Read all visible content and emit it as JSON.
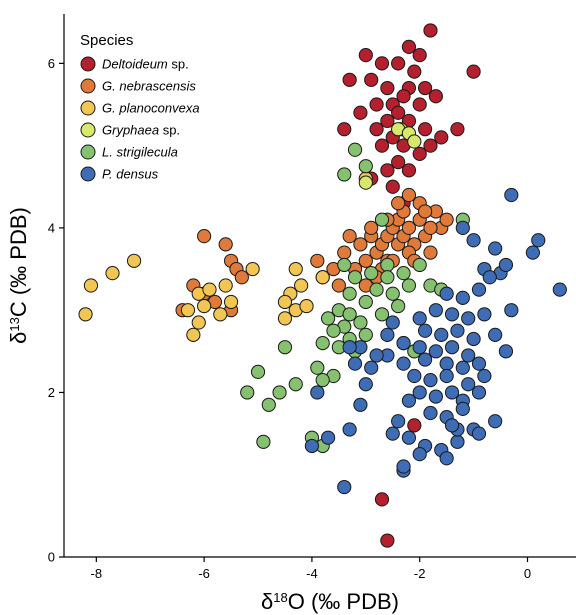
{
  "chart_data": {
    "type": "scatter",
    "xlabel_symbol": "δ",
    "xlabel_sup": "18",
    "xlabel_rest": "O (‰ PDB)",
    "ylabel_symbol": "δ",
    "ylabel_sup": "13",
    "ylabel_rest": "C (‰ PDB)",
    "xlim": [
      -8.6,
      0.9
    ],
    "ylim": [
      0,
      6.6
    ],
    "xticks": [
      -8,
      -6,
      -4,
      -2,
      0
    ],
    "yticks": [
      0,
      2,
      4,
      6
    ],
    "legend_title": "Species",
    "legend_position": "top-left",
    "series": [
      {
        "name": "Deltoideum sp.",
        "name_italic": "Deltoideum",
        "name_rest": " sp.",
        "color": "#b5202e",
        "points": [
          [
            -1.8,
            6.4
          ],
          [
            -2.2,
            6.2
          ],
          [
            -2.0,
            6.1
          ],
          [
            -3.0,
            6.1
          ],
          [
            -2.7,
            6.0
          ],
          [
            -2.4,
            6.0
          ],
          [
            -2.1,
            5.9
          ],
          [
            -1.0,
            5.9
          ],
          [
            -3.3,
            5.8
          ],
          [
            -2.9,
            5.8
          ],
          [
            -2.2,
            5.7
          ],
          [
            -1.9,
            5.7
          ],
          [
            -2.6,
            5.7
          ],
          [
            -2.3,
            5.6
          ],
          [
            -1.7,
            5.6
          ],
          [
            -2.8,
            5.5
          ],
          [
            -2.5,
            5.5
          ],
          [
            -2.0,
            5.5
          ],
          [
            -3.1,
            5.4
          ],
          [
            -2.4,
            5.4
          ],
          [
            -2.6,
            5.3
          ],
          [
            -2.2,
            5.3
          ],
          [
            -1.9,
            5.2
          ],
          [
            -3.4,
            5.2
          ],
          [
            -2.8,
            5.2
          ],
          [
            -1.3,
            5.2
          ],
          [
            -2.5,
            5.1
          ],
          [
            -2.3,
            5.0
          ],
          [
            -1.6,
            5.1
          ],
          [
            -2.7,
            5.0
          ],
          [
            -1.8,
            5.0
          ],
          [
            -2.0,
            4.9
          ],
          [
            -2.4,
            4.8
          ],
          [
            -2.6,
            4.7
          ],
          [
            -2.2,
            4.7
          ],
          [
            -2.9,
            4.6
          ],
          [
            -2.5,
            4.5
          ],
          [
            -2.3,
            4.3
          ],
          [
            -2.7,
            0.7
          ],
          [
            -2.6,
            0.2
          ],
          [
            -2.1,
            1.6
          ]
        ]
      },
      {
        "name": "G. nebrascensis",
        "name_italic": "G. nebrascensis",
        "name_rest": "",
        "color": "#e07a3a",
        "points": [
          [
            -6.0,
            3.9
          ],
          [
            -5.6,
            3.8
          ],
          [
            -5.5,
            3.6
          ],
          [
            -5.4,
            3.5
          ],
          [
            -5.3,
            3.4
          ],
          [
            -6.2,
            3.3
          ],
          [
            -6.0,
            3.2
          ],
          [
            -5.8,
            3.1
          ],
          [
            -6.4,
            3.0
          ],
          [
            -5.5,
            3.0
          ],
          [
            -3.9,
            3.6
          ],
          [
            -3.6,
            3.5
          ],
          [
            -3.8,
            3.4
          ],
          [
            -3.4,
            3.7
          ],
          [
            -3.3,
            3.9
          ],
          [
            -3.1,
            3.8
          ],
          [
            -3.0,
            3.6
          ],
          [
            -2.9,
            3.9
          ],
          [
            -2.8,
            3.7
          ],
          [
            -2.7,
            3.8
          ],
          [
            -2.6,
            3.9
          ],
          [
            -2.5,
            4.0
          ],
          [
            -2.4,
            3.8
          ],
          [
            -2.3,
            3.9
          ],
          [
            -2.2,
            4.0
          ],
          [
            -2.1,
            3.8
          ],
          [
            -2.0,
            4.1
          ],
          [
            -1.9,
            3.9
          ],
          [
            -1.8,
            3.7
          ],
          [
            -1.7,
            4.2
          ],
          [
            -1.6,
            4.0
          ],
          [
            -1.5,
            4.1
          ],
          [
            -2.2,
            3.7
          ],
          [
            -2.6,
            3.6
          ],
          [
            -2.4,
            4.1
          ],
          [
            -2.3,
            4.2
          ],
          [
            -2.0,
            4.3
          ],
          [
            -1.9,
            4.2
          ],
          [
            -2.7,
            3.5
          ],
          [
            -2.5,
            3.6
          ],
          [
            -2.1,
            3.6
          ],
          [
            -3.2,
            3.5
          ],
          [
            -2.8,
            3.4
          ],
          [
            -3.5,
            3.3
          ],
          [
            -2.9,
            4.0
          ],
          [
            -2.4,
            4.3
          ],
          [
            -2.2,
            4.4
          ],
          [
            -1.8,
            4.0
          ],
          [
            -2.6,
            4.1
          ],
          [
            -3.0,
            3.3
          ]
        ]
      },
      {
        "name": "G. planoconvexa",
        "name_italic": "G. planoconvexa",
        "name_rest": "",
        "color": "#f2c653",
        "points": [
          [
            -8.1,
            3.3
          ],
          [
            -8.2,
            2.95
          ],
          [
            -7.7,
            3.45
          ],
          [
            -7.3,
            3.6
          ],
          [
            -6.1,
            3.2
          ],
          [
            -5.9,
            3.25
          ],
          [
            -5.6,
            3.3
          ],
          [
            -5.5,
            3.1
          ],
          [
            -6.3,
            3.0
          ],
          [
            -6.0,
            3.05
          ],
          [
            -5.7,
            2.95
          ],
          [
            -6.1,
            2.85
          ],
          [
            -6.2,
            2.7
          ],
          [
            -5.1,
            3.5
          ],
          [
            -4.3,
            3.5
          ],
          [
            -4.2,
            3.3
          ],
          [
            -4.4,
            3.2
          ],
          [
            -4.5,
            3.1
          ],
          [
            -4.3,
            3.0
          ],
          [
            -4.1,
            3.05
          ],
          [
            -4.5,
            2.9
          ],
          [
            -3.8,
            3.4
          ],
          [
            -2.35,
            5.2
          ],
          [
            -3.0,
            4.6
          ]
        ]
      },
      {
        "name": "Gryphaea sp.",
        "name_italic": "Gryphaea",
        "name_rest": " sp.",
        "color": "#d7e86a",
        "points": [
          [
            -2.4,
            5.2
          ],
          [
            -2.2,
            5.15
          ],
          [
            -3.0,
            4.55
          ],
          [
            -2.1,
            5.05
          ]
        ]
      },
      {
        "name": "L. strigilecula",
        "name_italic": "L. strigilecula",
        "name_rest": "",
        "color": "#86c170",
        "points": [
          [
            -3.2,
            4.95
          ],
          [
            -3.4,
            4.65
          ],
          [
            -3.0,
            4.75
          ],
          [
            -2.7,
            4.1
          ],
          [
            -1.2,
            4.1
          ],
          [
            -3.4,
            3.55
          ],
          [
            -3.2,
            3.4
          ],
          [
            -2.9,
            3.45
          ],
          [
            -2.6,
            3.55
          ],
          [
            -2.3,
            3.45
          ],
          [
            -2.0,
            3.55
          ],
          [
            -1.8,
            3.3
          ],
          [
            -3.3,
            3.2
          ],
          [
            -3.0,
            3.1
          ],
          [
            -2.8,
            3.25
          ],
          [
            -2.5,
            3.2
          ],
          [
            -2.2,
            3.3
          ],
          [
            -1.6,
            3.25
          ],
          [
            -3.5,
            3.0
          ],
          [
            -3.3,
            2.95
          ],
          [
            -2.7,
            2.95
          ],
          [
            -3.7,
            2.9
          ],
          [
            -3.1,
            2.85
          ],
          [
            -3.4,
            2.8
          ],
          [
            -3.6,
            2.75
          ],
          [
            -3.0,
            2.7
          ],
          [
            -3.3,
            2.65
          ],
          [
            -3.8,
            2.6
          ],
          [
            -3.5,
            2.55
          ],
          [
            -3.2,
            2.5
          ],
          [
            -2.3,
            2.6
          ],
          [
            -2.1,
            2.5
          ],
          [
            -4.5,
            2.55
          ],
          [
            -3.9,
            2.3
          ],
          [
            -4.3,
            2.1
          ],
          [
            -3.6,
            2.2
          ],
          [
            -3.8,
            2.15
          ],
          [
            -5.0,
            2.25
          ],
          [
            -5.2,
            2.0
          ],
          [
            -4.6,
            2.0
          ],
          [
            -4.8,
            1.85
          ],
          [
            -4.0,
            1.45
          ],
          [
            -3.8,
            1.35
          ],
          [
            -4.9,
            1.4
          ],
          [
            -2.4,
            3.05
          ],
          [
            -2.6,
            3.4
          ]
        ]
      },
      {
        "name": "P. densus",
        "name_italic": "P. densus",
        "name_rest": "",
        "color": "#3e6db5",
        "points": [
          [
            -0.3,
            4.4
          ],
          [
            0.2,
            3.85
          ],
          [
            0.1,
            3.7
          ],
          [
            0.6,
            3.25
          ],
          [
            -0.6,
            3.75
          ],
          [
            -1.0,
            3.85
          ],
          [
            -1.2,
            4.0
          ],
          [
            -0.8,
            3.5
          ],
          [
            -0.5,
            3.45
          ],
          [
            -0.4,
            3.55
          ],
          [
            -0.7,
            3.4
          ],
          [
            -1.5,
            3.2
          ],
          [
            -1.2,
            3.15
          ],
          [
            -0.9,
            3.25
          ],
          [
            -1.7,
            3.0
          ],
          [
            -1.4,
            2.95
          ],
          [
            -1.1,
            2.9
          ],
          [
            -0.8,
            2.95
          ],
          [
            -0.3,
            3.0
          ],
          [
            -2.0,
            2.9
          ],
          [
            -1.9,
            2.75
          ],
          [
            -1.6,
            2.7
          ],
          [
            -1.3,
            2.75
          ],
          [
            -1.0,
            2.65
          ],
          [
            -0.6,
            2.7
          ],
          [
            -2.3,
            2.6
          ],
          [
            -2.0,
            2.55
          ],
          [
            -1.7,
            2.5
          ],
          [
            -1.4,
            2.55
          ],
          [
            -1.1,
            2.45
          ],
          [
            -0.4,
            2.5
          ],
          [
            -2.6,
            2.45
          ],
          [
            -2.3,
            2.35
          ],
          [
            -1.9,
            2.4
          ],
          [
            -1.5,
            2.35
          ],
          [
            -1.2,
            2.3
          ],
          [
            -0.9,
            2.35
          ],
          [
            -2.1,
            2.2
          ],
          [
            -1.8,
            2.15
          ],
          [
            -1.5,
            2.2
          ],
          [
            -1.1,
            2.1
          ],
          [
            -0.8,
            2.2
          ],
          [
            -2.0,
            2.0
          ],
          [
            -1.7,
            1.95
          ],
          [
            -1.4,
            2.0
          ],
          [
            -1.2,
            1.9
          ],
          [
            -0.9,
            2.0
          ],
          [
            -1.8,
            1.75
          ],
          [
            -1.5,
            1.7
          ],
          [
            -1.2,
            1.8
          ],
          [
            -2.2,
            1.9
          ],
          [
            -2.8,
            2.45
          ],
          [
            -3.2,
            2.35
          ],
          [
            -2.9,
            2.3
          ],
          [
            -3.1,
            2.55
          ],
          [
            -3.3,
            2.55
          ],
          [
            -2.6,
            2.7
          ],
          [
            -2.5,
            2.85
          ],
          [
            -3.0,
            2.1
          ],
          [
            -3.1,
            1.85
          ],
          [
            -3.3,
            1.55
          ],
          [
            -2.5,
            1.5
          ],
          [
            -2.2,
            1.45
          ],
          [
            -1.9,
            1.35
          ],
          [
            -1.6,
            1.3
          ],
          [
            -1.3,
            1.4
          ],
          [
            -1.0,
            1.55
          ],
          [
            -1.5,
            1.2
          ],
          [
            -2.3,
            1.05
          ],
          [
            -2.0,
            1.25
          ],
          [
            -3.4,
            0.85
          ],
          [
            -4.0,
            1.35
          ],
          [
            -3.7,
            1.45
          ],
          [
            -2.4,
            1.65
          ],
          [
            -1.3,
            1.55
          ],
          [
            -0.6,
            1.65
          ],
          [
            -2.3,
            1.1
          ],
          [
            -0.9,
            1.5
          ],
          [
            -3.9,
            2.0
          ],
          [
            -1.4,
            1.6
          ]
        ]
      }
    ]
  }
}
